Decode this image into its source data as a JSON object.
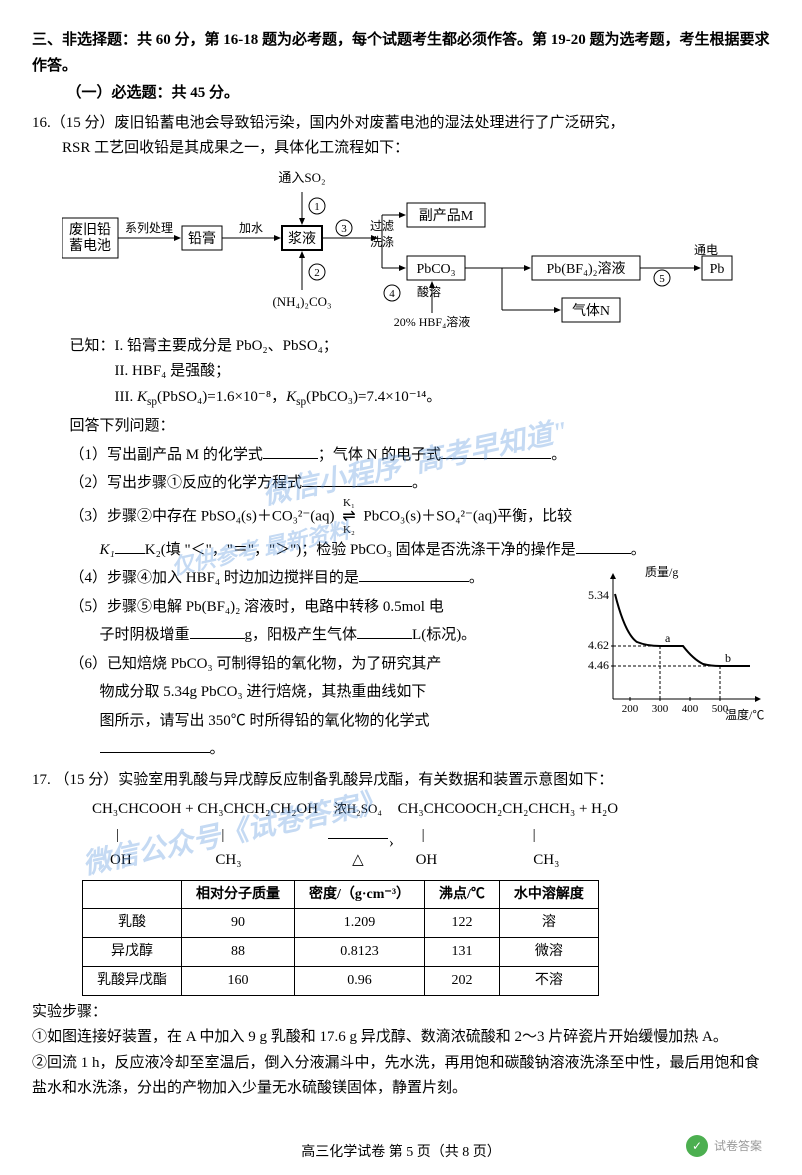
{
  "section3": {
    "title": "三、非选择题：共 60 分，第 16-18 题为必考题，每个试题考生都必须作答。第 19-20 题为选考题，考生根据要求作答。",
    "sub1": "（一）必选题：共 45 分。"
  },
  "q16": {
    "head": "16.（15 分）废旧铅蓄电池会导致铅污染，国内外对废蓄电池的湿法处理进行了广泛研究，",
    "head2": "RSR 工艺回收铅是其成果之一，具体化工流程如下：",
    "flow": {
      "boxes": {
        "battery": "废旧铅\n蓄电池",
        "paste": "铅膏",
        "slurry": "浆液",
        "byproduct": "副产品M",
        "pbco3": "PbCO₃",
        "pbbf4": "Pb(BF₄)₂溶液",
        "pb": "Pb",
        "gasN": "气体N"
      },
      "labels": {
        "series": "系列处理",
        "addwater": "加水",
        "so2": "通入SO₂",
        "nh4co3": "(NH₄)₂CO₃",
        "filter": "过滤\n洗涤",
        "acid": "酸溶",
        "hbf4": "20% HBF₄溶液",
        "elec": "通电"
      },
      "circles": [
        "①",
        "②",
        "③",
        "④",
        "⑤"
      ]
    },
    "known_label": "已知：",
    "known1": "I. 铅膏主要成分是 PbO₂、PbSO₄；",
    "known2": "II. HBF₄ 是强酸；",
    "known3_a": "III. ",
    "known3_b": "K",
    "known3_c": "sp",
    "known3_d": "(PbSO₄)=1.6×10⁻⁸，",
    "known3_e": "K",
    "known3_f": "sp",
    "known3_g": "(PbCO₃)=7.4×10⁻¹⁴。",
    "ans_label": "回答下列问题：",
    "p1a": "（1）写出副产品 M 的化学式",
    "p1b": "；气体 N 的电子式",
    "p1c": "。",
    "p2a": "（2）写出步骤①反应的化学方程式",
    "p2b": "。",
    "p3a_1": "（3）步骤②中存在 PbSO₄(s)＋CO₃²⁻(aq)",
    "p3a_2": "PbCO₃(s)＋SO₄²⁻(aq)平衡，比较",
    "p3a_k1": "K₁",
    "p3a_k2": "K₂",
    "p3b_1": "K₁",
    "p3b_2": "K₂(填 \"＜\"，\"＝\"，\"＞\")；检验 PbCO₃ 固体是否洗涤干净的操作是",
    "p3b_3": "。",
    "p4": "（4）步骤④加入 HBF₄ 时边加边搅拌目的是",
    "p4b": "。",
    "p5a": "（5）步骤⑤电解 Pb(BF₄)₂ 溶液时，电路中转移 0.5mol 电",
    "p5b": "子时阴极增重",
    "p5c": "g，阳极产生气体",
    "p5d": "L(标况)。",
    "p6a": "（6）已知焙烧 PbCO₃ 可制得铅的氧化物，为了研究其产",
    "p6b": "物成分取 5.34g PbCO₃ 进行焙烧，其热重曲线如下",
    "p6c": "图所示，请写出 350℃ 时所得铅的氧化物的化学式",
    "p6d": "。",
    "chart": {
      "ylabel": "质量/g",
      "xlabel": "温度/℃",
      "y_ticks": [
        "5.34",
        "4.62",
        "4.46"
      ],
      "x_ticks": [
        "200",
        "300",
        "400",
        "500"
      ],
      "pts": [
        "a",
        "b"
      ],
      "curve": [
        [
          0,
          0
        ],
        [
          20,
          52
        ],
        [
          45,
          62
        ],
        [
          50,
          63
        ],
        [
          100,
          63
        ],
        [
          118,
          85
        ],
        [
          140,
          88
        ],
        [
          180,
          88
        ]
      ],
      "bg": "#ffffff",
      "line_color": "#000000"
    }
  },
  "q17": {
    "head": "17. （15 分）实验室用乳酸与异戊醇反应制备乳酸异戊酯，有关数据和装置示意图如下：",
    "eqn_left1": "CH₃CHCOOH",
    "eqn_left1b": "OH",
    "eqn_plus": " + ",
    "eqn_left2": "CH₃CHCH₂CH₂OH",
    "eqn_left2b": "CH₃",
    "eqn_cond": "浓H₂SO₄",
    "eqn_right1": "CH₃CHCOOCH₂CH₂CHCH₃",
    "eqn_right1b": "OH",
    "eqn_right1c": "CH₃",
    "eqn_h2o": "+ H₂O",
    "table": {
      "headers": [
        "",
        "相对分子质量",
        "密度/（g·cm⁻³）",
        "沸点/℃",
        "水中溶解度"
      ],
      "rows": [
        [
          "乳酸",
          "90",
          "1.209",
          "122",
          "溶"
        ],
        [
          "异戊醇",
          "88",
          "0.8123",
          "131",
          "微溶"
        ],
        [
          "乳酸异戊酯",
          "160",
          "0.96",
          "202",
          "不溶"
        ]
      ]
    },
    "steps_label": "实验步骤：",
    "s1": "①如图连接好装置，在 A 中加入 9 g 乳酸和 17.6 g 异戊醇、数滴浓硫酸和 2～3 片碎瓷片开始缓慢加热 A。",
    "s2": "②回流 1 h，反应液冷却至室温后，倒入分液漏斗中，先水洗，再用饱和碳酸钠溶液洗涤至中性，最后用饱和食盐水和水洗涤，分出的产物加入少量无水硫酸镁固体，静置片刻。"
  },
  "watermarks": {
    "w1": "微信小程序\"高考早知道\"",
    "w2": "微信公众号《试卷答案》",
    "w3": "仅供参考 最新资料"
  },
  "footer": "高三化学试卷 第 5 页（共 8 页）",
  "logo_text": "试卷答案"
}
